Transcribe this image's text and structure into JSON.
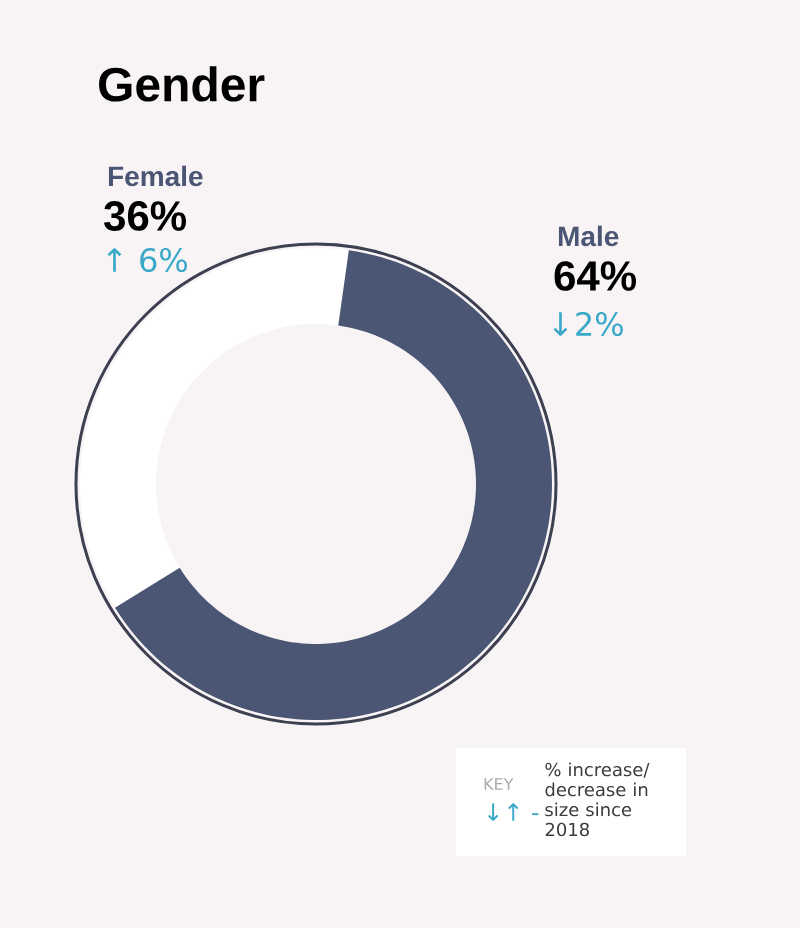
{
  "chart_data": {
    "type": "donut",
    "title": "Gender",
    "categories": [
      "Female",
      "Male"
    ],
    "values": [
      36,
      64
    ],
    "colors": [
      "#ffffff",
      "#4a5673"
    ],
    "value_labels": [
      "36%",
      "64%"
    ],
    "annotations": [
      "↑ 6%",
      "↓2%",
      "KEY",
      "↓↑ -",
      "% increase/ decrease in size since 2018"
    ]
  }
}
